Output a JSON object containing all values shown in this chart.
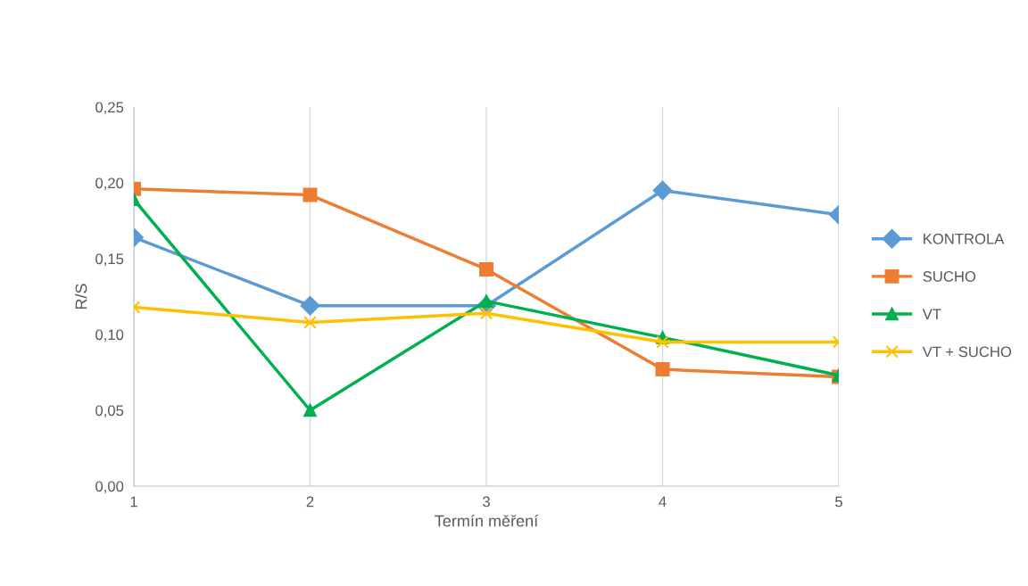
{
  "chart_data": {
    "type": "line",
    "xlabel": "Termín měření",
    "ylabel": "R/S",
    "x": [
      1,
      2,
      3,
      4,
      5
    ],
    "series": [
      {
        "name": "KONTROLA",
        "color": "#5b9bd5",
        "marker": "diamond",
        "values": [
          0.164,
          0.119,
          0.119,
          0.195,
          0.179
        ]
      },
      {
        "name": "SUCHO",
        "color": "#ed7d31",
        "marker": "square",
        "values": [
          0.196,
          0.192,
          0.143,
          0.077,
          0.072
        ]
      },
      {
        "name": "VT",
        "color": "#00b050",
        "marker": "triangle",
        "values": [
          0.189,
          0.05,
          0.122,
          0.098,
          0.073
        ]
      },
      {
        "name": "VT + SUCHO",
        "color": "#ffc000",
        "marker": "cross",
        "values": [
          0.118,
          0.108,
          0.114,
          0.095,
          0.095
        ]
      }
    ],
    "xlim": [
      1,
      5
    ],
    "xticks": [
      1,
      2,
      3,
      4,
      5
    ],
    "ylim": [
      0,
      0.25
    ],
    "yticks": [
      {
        "value": 0,
        "label": "0,00"
      },
      {
        "value": 0.05,
        "label": "0,05"
      },
      {
        "value": 0.1,
        "label": "0,10"
      },
      {
        "value": 0.15,
        "label": "0,15"
      },
      {
        "value": 0.2,
        "label": "0,20"
      },
      {
        "value": 0.25,
        "label": "0,25"
      }
    ],
    "grid": "x",
    "legend": "right"
  }
}
